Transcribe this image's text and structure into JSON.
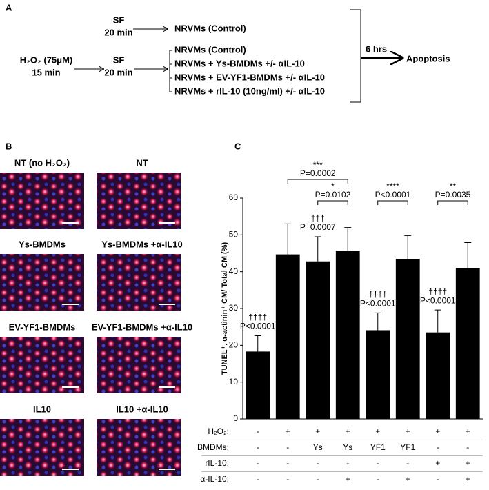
{
  "panel_a": {
    "label": "A",
    "top_step": "SF",
    "top_time": "20 min",
    "top_target": "NRVMs (Control)",
    "treatment": "H₂O₂ (75μM)",
    "treatment_time": "15 min",
    "step": "SF",
    "step_time": "20 min",
    "groups": [
      "NRVMs (Control)",
      "NRVMs + Ys-BMDMs +/- αIL-10",
      "NRVMs + EV-YF1-BMDMs +/- αIL-10",
      "NRVMs + rIL-10 (10ng/ml) +/- αIL-10"
    ],
    "duration": "6 hrs",
    "outcome": "Apoptosis"
  },
  "panel_b": {
    "label": "B",
    "images": [
      "NT (no H₂O₂)",
      "NT",
      "Ys-BMDMs",
      "Ys-BMDMs +α-IL10",
      "EV-YF1-BMDMs",
      "EV-YF1-BMDMs +α-IL10",
      "IL10",
      "IL10 +α-IL10"
    ]
  },
  "chart_data": {
    "type": "bar",
    "panel_label": "C",
    "y_label": "TUNEL⁺, α-actinin⁺ CM/ Total CM (%)",
    "values": [
      18.3,
      44.7,
      42.8,
      45.7,
      24.1,
      43.5,
      23.5,
      41.0
    ],
    "errors": [
      4.3,
      8.3,
      6.7,
      6.3,
      4.7,
      6.3,
      6.1,
      6.9
    ],
    "color": "#000000",
    "ylim": [
      0,
      60
    ],
    "yticks": [
      0,
      10,
      20,
      30,
      40,
      50,
      60
    ],
    "significance_vs_control": [
      {
        "symbol": "††††",
        "p": "P<0.0001"
      },
      null,
      {
        "symbol": "†††",
        "p": "P=0.0007"
      },
      null,
      {
        "symbol": "††††",
        "p": "P<0.0001"
      },
      null,
      {
        "symbol": "††††",
        "p": "P<0.0001"
      },
      null
    ],
    "comparisons": [
      {
        "symbol": "*",
        "p": "P=0.0102"
      },
      {
        "symbol": "***",
        "p": "P=0.0002"
      },
      {
        "symbol": "****",
        "p": "P<0.0001"
      },
      {
        "symbol": "**",
        "p": "P=0.0035"
      }
    ],
    "conditions": [
      {
        "label": "H₂O₂:",
        "values": [
          "-",
          "+",
          "+",
          "+",
          "+",
          "+",
          "+",
          "+"
        ]
      },
      {
        "label": "BMDMs:",
        "values": [
          "-",
          "-",
          "Ys",
          "Ys",
          "YF1",
          "YF1",
          "-",
          "-"
        ]
      },
      {
        "label": "rIL-10:",
        "values": [
          "-",
          "-",
          "-",
          "-",
          "-",
          "-",
          "+",
          "+"
        ]
      },
      {
        "label": "α-IL-10:",
        "values": [
          "-",
          "-",
          "-",
          "+",
          "-",
          "+",
          "-",
          "+"
        ]
      }
    ]
  }
}
